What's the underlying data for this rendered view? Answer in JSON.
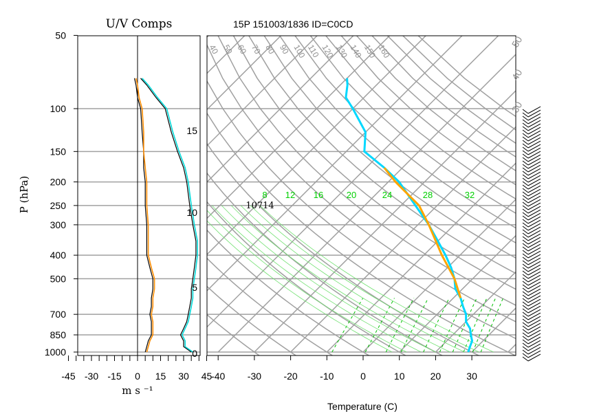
{
  "chart_data": [
    {
      "type": "line",
      "title": "U/V Comps",
      "ylabel": "P (hPa)",
      "xlabel": "m s ⁻¹",
      "x_ticks": [
        "-45",
        "-30",
        "-15",
        "0",
        "15",
        "30",
        "45"
      ],
      "y_ticks": [
        50,
        100,
        150,
        200,
        250,
        300,
        400,
        500,
        700,
        850,
        1000
      ],
      "xlim": [
        -50,
        50
      ],
      "y_scale": "log",
      "ylim": [
        1000,
        50
      ],
      "grid": true,
      "series": [
        {
          "color": "#000000",
          "p": [
            1000,
            950,
            900,
            850,
            800,
            750,
            700,
            650,
            600,
            550,
            500,
            450,
            400,
            350,
            300,
            250,
            200,
            175,
            150,
            125,
            100,
            90,
            80,
            75
          ],
          "values": [
            5,
            6,
            7,
            9,
            9,
            9,
            8,
            9,
            9,
            10,
            10,
            8,
            6,
            6,
            6,
            5,
            5,
            4,
            4,
            3,
            2,
            0,
            -1,
            -2
          ]
        },
        {
          "color": "#ff8c00",
          "p": [
            1000,
            950,
            900,
            850,
            800,
            750,
            700,
            650,
            600,
            550,
            500,
            450,
            400,
            350,
            300,
            250,
            200,
            175,
            150,
            125,
            100,
            90,
            80,
            75
          ],
          "values": [
            6,
            7,
            8,
            10,
            10,
            10,
            9,
            10,
            10,
            11,
            11,
            9,
            7,
            7,
            7,
            6,
            6,
            5,
            4,
            4,
            3,
            1,
            0,
            -1
          ]
        },
        {
          "color": "#000000",
          "p": [
            1000,
            950,
            900,
            850,
            800,
            750,
            700,
            650,
            600,
            550,
            500,
            450,
            400,
            350,
            300,
            250,
            200,
            175,
            150,
            125,
            100,
            90,
            80,
            75
          ],
          "values": [
            35,
            30,
            30,
            28,
            30,
            32,
            33,
            34,
            35,
            35,
            36,
            37,
            38,
            38,
            36,
            34,
            32,
            30,
            26,
            22,
            18,
            12,
            6,
            2
          ]
        },
        {
          "color": "#00d8d8",
          "p": [
            1000,
            950,
            900,
            850,
            800,
            750,
            700,
            650,
            600,
            550,
            500,
            450,
            400,
            350,
            300,
            250,
            200,
            175,
            150,
            125,
            100,
            90,
            80,
            75
          ],
          "values": [
            36,
            31,
            31,
            29,
            31,
            33,
            34,
            35,
            36,
            36,
            37,
            38,
            39,
            39,
            37,
            35,
            33,
            31,
            27,
            23,
            19,
            13,
            7,
            3
          ]
        }
      ]
    },
    {
      "type": "line",
      "title": "15P 151003/1836 ID=C0CD",
      "xlabel": "Temperature (C)",
      "x_ticks": [
        "-40",
        "-30",
        "-20",
        "-10",
        "0",
        "10",
        "20",
        "30"
      ],
      "height_ticks": [
        "0",
        "5",
        "10",
        "15"
      ],
      "isotherm_labels": [
        "40",
        "50",
        "60",
        "70",
        "80",
        "90",
        "100",
        "110",
        "120",
        "130",
        "140",
        "150",
        "160"
      ],
      "mixing_ratio_labels": [
        "8",
        "12",
        "16",
        "20",
        "24",
        "28",
        "32"
      ],
      "height_annotation": "10714",
      "dry_adiabat_labels": [
        "50",
        "40",
        "30"
      ],
      "grid": true,
      "series": [
        {
          "color": "#000000",
          "p": [
            1000,
            950,
            900,
            850,
            800,
            750,
            700,
            650,
            600,
            550,
            500,
            450,
            400,
            350,
            300,
            250,
            200,
            175,
            150,
            125,
            100,
            90,
            80,
            75
          ],
          "values": [
            29,
            28,
            27,
            25,
            23,
            20,
            18,
            15,
            12,
            8,
            5,
            1,
            -4,
            -10,
            -17,
            -26,
            -37,
            -45,
            -55,
            -60,
            -70,
            -75,
            -78,
            -80
          ]
        },
        {
          "color": "#00d8ff",
          "p": [
            1000,
            950,
            900,
            850,
            800,
            750,
            700,
            650,
            600,
            550,
            500,
            450,
            400,
            350,
            300,
            250,
            200,
            175,
            150,
            125,
            100,
            90,
            80,
            75
          ],
          "values": [
            29,
            28,
            27,
            25,
            23,
            20,
            18,
            15,
            12,
            8,
            5,
            1,
            -4,
            -10,
            -17,
            -26,
            -37,
            -45,
            -55,
            -60,
            -70,
            -75,
            -78,
            -80
          ]
        },
        {
          "color": "#ffa500",
          "p": [
            600,
            500,
            400,
            300,
            250,
            200,
            175
          ],
          "values": [
            12,
            5,
            -5,
            -17,
            -25,
            -38,
            -45
          ]
        }
      ]
    }
  ]
}
